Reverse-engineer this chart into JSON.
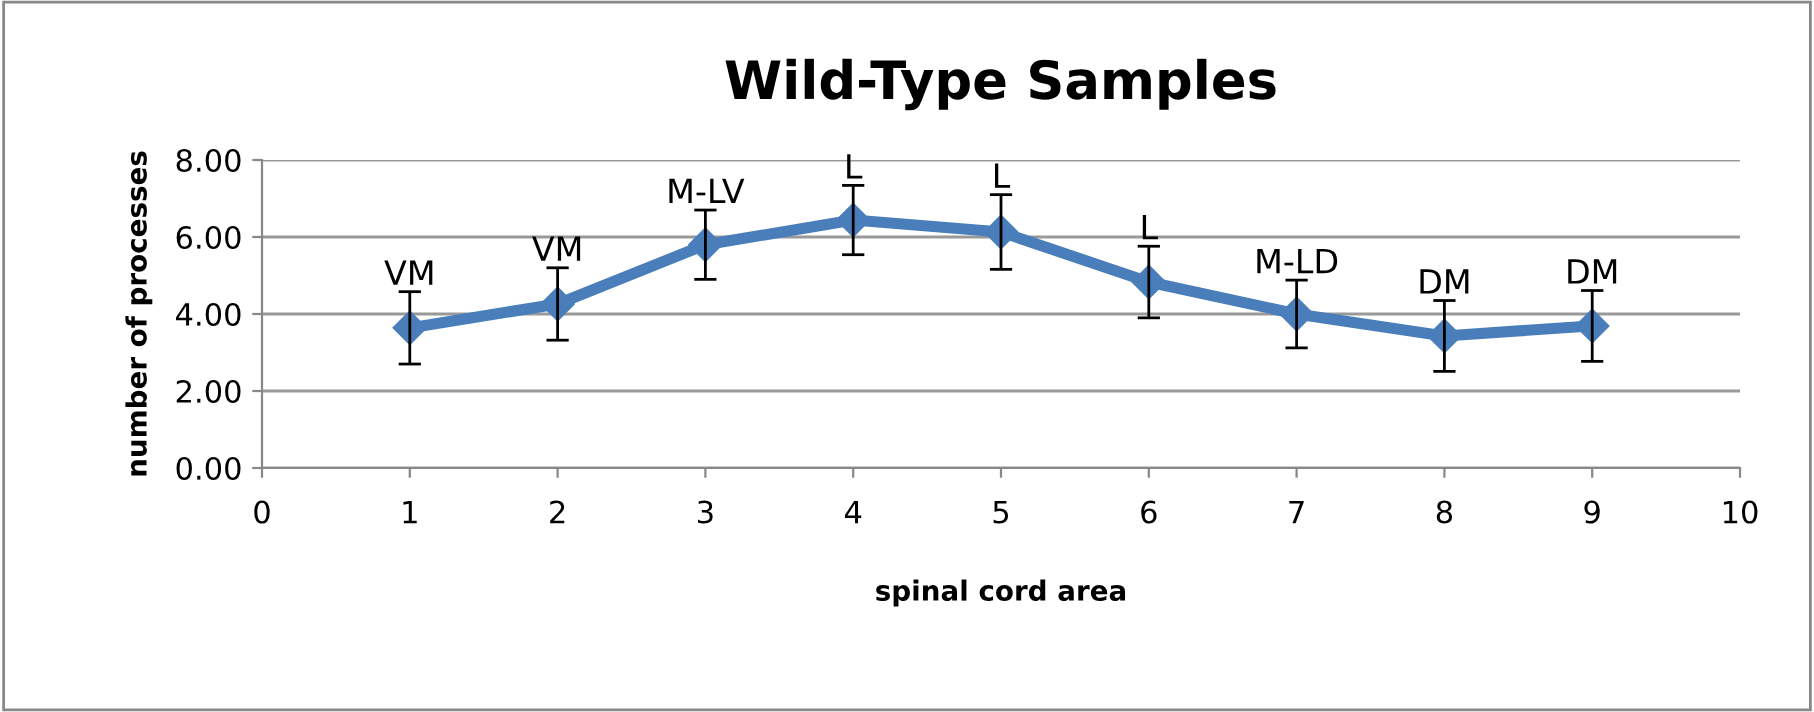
{
  "chart_data": {
    "type": "line",
    "title": "Wild-Type Samples",
    "xlabel": "spinal cord area",
    "ylabel": "number of processes",
    "x": [
      1,
      2,
      3,
      4,
      5,
      6,
      7,
      8,
      9
    ],
    "series": [
      {
        "color": "#4a7ebb",
        "values": [
          3.64,
          4.26,
          5.8,
          6.44,
          6.13,
          4.83,
          4.0,
          3.43,
          3.69
        ],
        "errors": [
          0.94,
          0.94,
          0.9,
          0.9,
          0.97,
          0.93,
          0.88,
          0.92,
          0.92
        ]
      }
    ],
    "xlim": [
      0,
      10
    ],
    "xticks": [
      0,
      1,
      2,
      3,
      4,
      5,
      6,
      7,
      8,
      9,
      10
    ],
    "ylim": [
      0,
      8
    ],
    "yticks": [
      {
        "value": 0,
        "label": "0.00"
      },
      {
        "value": 2,
        "label": "2.00"
      },
      {
        "value": 4,
        "label": "4.00"
      },
      {
        "value": 6,
        "label": "6.00"
      },
      {
        "value": 8,
        "label": "8.00"
      }
    ],
    "grid": "y",
    "marker": "diamond",
    "line_style": "solid",
    "legend": false,
    "annotations": [
      {
        "text": "VM",
        "x": 1,
        "y": 3.64
      },
      {
        "text": "VM",
        "x": 2,
        "y": 4.26
      },
      {
        "text": "M-LV",
        "x": 3,
        "y": 5.8
      },
      {
        "text": "L",
        "x": 4,
        "y": 6.44
      },
      {
        "text": "L",
        "x": 5,
        "y": 6.13
      },
      {
        "text": "L",
        "x": 6,
        "y": 4.83
      },
      {
        "text": "M-LD",
        "x": 7,
        "y": 4.0
      },
      {
        "text": "DM",
        "x": 8,
        "y": 3.43
      },
      {
        "text": "DM",
        "x": 9,
        "y": 3.69
      }
    ]
  }
}
